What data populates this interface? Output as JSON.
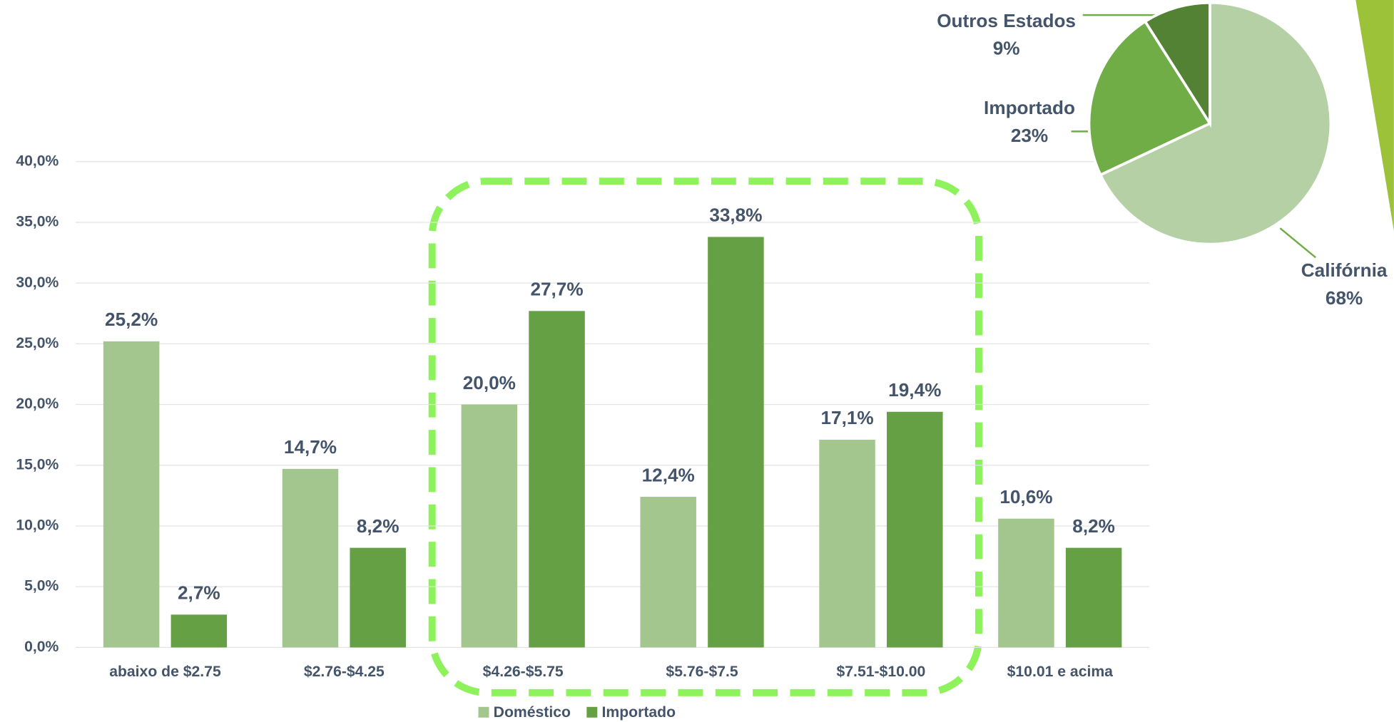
{
  "chart_data": [
    {
      "type": "bar",
      "categories": [
        "abaixo de $2.75",
        "$2.76-$4.25",
        "$4.26-$5.75",
        "$5.76-$7.5",
        "$7.51-$10.00",
        "$10.01 e acima"
      ],
      "series": [
        {
          "name": "Doméstico",
          "color": "#a3c68e",
          "values": [
            25.2,
            14.7,
            20.0,
            12.4,
            17.1,
            10.6
          ],
          "value_labels": [
            "25,2%",
            "14,7%",
            "20,0%",
            "12,4%",
            "17,1%",
            "10,6%"
          ]
        },
        {
          "name": "Importado",
          "color": "#65a044",
          "values": [
            2.7,
            8.2,
            27.7,
            33.8,
            19.4,
            8.2
          ],
          "value_labels": [
            "2,7%",
            "8,2%",
            "27,7%",
            "33,8%",
            "19,4%",
            "8,2%"
          ]
        }
      ],
      "ylim": [
        0,
        40
      ],
      "yticks": [
        {
          "value": 0,
          "label": "0,0%"
        },
        {
          "value": 5,
          "label": "5,0%"
        },
        {
          "value": 10,
          "label": "10,0%"
        },
        {
          "value": 15,
          "label": "15,0%"
        },
        {
          "value": 20,
          "label": "20,0%"
        },
        {
          "value": 25,
          "label": "25,0%"
        },
        {
          "value": 30,
          "label": "30,0%"
        },
        {
          "value": 35,
          "label": "35,0%"
        },
        {
          "value": 40,
          "label": "40,0%"
        }
      ],
      "grid": true,
      "legend": "bottom"
    },
    {
      "type": "pie",
      "categories": [
        "Califórnia",
        "Importado",
        "Outros Estados"
      ],
      "values": [
        68,
        23,
        9
      ],
      "value_labels": [
        "68%",
        "23%",
        "9%"
      ],
      "colors": [
        "#b5d0a5",
        "#70ad47",
        "#548235"
      ]
    }
  ]
}
